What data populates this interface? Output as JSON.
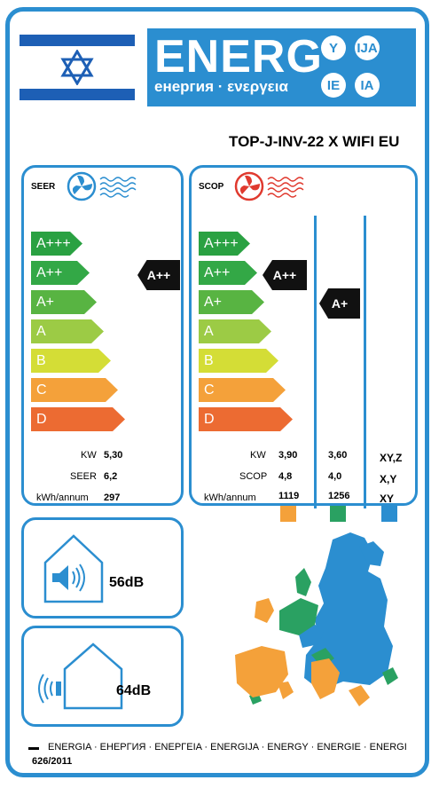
{
  "header": {
    "brand": "ENERG",
    "subtitle": "енергия · ενεργεια",
    "circles": [
      "Y",
      "IJA",
      "IE",
      "IA"
    ]
  },
  "model": "TOP-J-INV-22 X WIFI EU",
  "classes": [
    "A+++",
    "A++",
    "A+",
    "A",
    "B",
    "C",
    "D"
  ],
  "class_colors": [
    "#2aa142",
    "#33a846",
    "#58b442",
    "#9ccb45",
    "#d4dd36",
    "#f4a13a",
    "#ec6b32"
  ],
  "seer": {
    "title": "SEER",
    "rating": "A++",
    "rows": [
      {
        "label": "KW",
        "value": "5,30"
      },
      {
        "label": "SEER",
        "value": "6,2"
      },
      {
        "label": "kWh/annum",
        "value": "297"
      }
    ]
  },
  "scop": {
    "title": "SCOP",
    "ratings": [
      "A++",
      "A+"
    ],
    "labels": [
      "KW",
      "SCOP",
      "kWh/annum"
    ],
    "col1": [
      "3,90",
      "4,8",
      "1119"
    ],
    "col2": [
      "3,60",
      "4,0",
      "1256"
    ],
    "col3": [
      "XY,Z",
      "X,Y",
      "XY"
    ],
    "zone_colors": [
      "#f4a13a",
      "#2aa162",
      "#2b8ed0"
    ]
  },
  "noise": {
    "indoor": "56dB",
    "outdoor": "64dB"
  },
  "footer": {
    "languages": "ENERGIA · ЕНЕРГИЯ · ΕΝΕΡΓΕΙΑ · ENERGIJA · ENERGY · ENERGIE · ENERGI",
    "regulation": "626/2011"
  }
}
